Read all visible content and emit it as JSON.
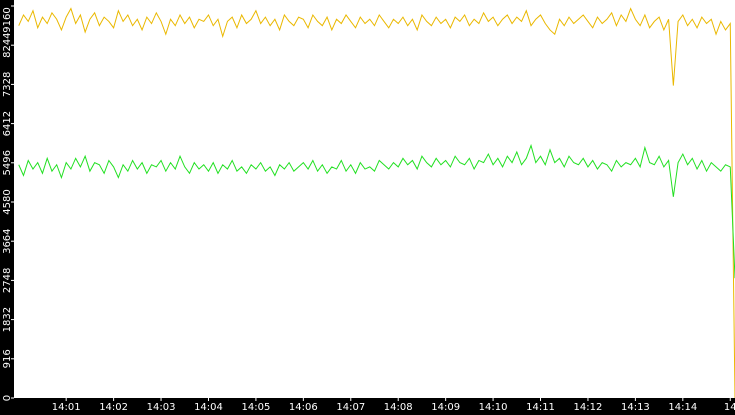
{
  "chart_data": {
    "type": "line",
    "x": [
      0,
      0.1,
      0.2,
      0.3,
      0.4,
      0.5,
      0.6,
      0.7,
      0.8,
      0.9,
      1,
      1.1,
      1.2,
      1.3,
      1.4,
      1.5,
      1.6,
      1.7,
      1.8,
      1.9,
      2,
      2.1,
      2.2,
      2.3,
      2.4,
      2.5,
      2.6,
      2.7,
      2.8,
      2.9,
      3,
      3.1,
      3.2,
      3.3,
      3.4,
      3.5,
      3.6,
      3.7,
      3.8,
      3.9,
      4,
      4.1,
      4.2,
      4.3,
      4.4,
      4.5,
      4.6,
      4.7,
      4.8,
      4.9,
      5,
      5.1,
      5.2,
      5.3,
      5.4,
      5.5,
      5.6,
      5.7,
      5.8,
      5.9,
      6,
      6.1,
      6.2,
      6.3,
      6.4,
      6.5,
      6.6,
      6.7,
      6.8,
      6.9,
      7,
      7.1,
      7.2,
      7.3,
      7.4,
      7.5,
      7.6,
      7.7,
      7.8,
      7.9,
      8,
      8.1,
      8.2,
      8.3,
      8.4,
      8.5,
      8.6,
      8.7,
      8.8,
      8.9,
      9,
      9.1,
      9.2,
      9.3,
      9.4,
      9.5,
      9.6,
      9.7,
      9.8,
      9.9,
      10,
      10.1,
      10.2,
      10.3,
      10.4,
      10.5,
      10.6,
      10.7,
      10.8,
      10.9,
      11,
      11.1,
      11.2,
      11.3,
      11.4,
      11.5,
      11.6,
      11.7,
      11.8,
      11.9,
      12,
      12.1,
      12.2,
      12.3,
      12.4,
      12.5,
      12.6,
      12.7,
      12.8,
      12.9,
      13,
      13.1,
      13.2,
      13.3,
      13.4,
      13.5,
      13.6,
      13.7,
      13.8,
      13.9,
      14,
      14.1,
      14.2,
      14.3,
      14.4,
      14.5,
      14.6,
      14.7,
      14.8,
      14.9,
      15,
      15.1
    ],
    "series": [
      {
        "color": "#eab800",
        "values": [
          8700,
          8950,
          8800,
          9050,
          8650,
          8900,
          8750,
          9000,
          8850,
          8600,
          8900,
          9100,
          8750,
          8950,
          8550,
          8850,
          9000,
          8700,
          8900,
          8800,
          8650,
          9050,
          8800,
          8950,
          8700,
          8850,
          8600,
          8900,
          8750,
          9000,
          8800,
          8500,
          8850,
          8700,
          8950,
          8750,
          8900,
          8650,
          8850,
          8800,
          8950,
          8700,
          8850,
          8450,
          8800,
          8900,
          8650,
          8950,
          8750,
          8850,
          9050,
          8750,
          8900,
          8700,
          8850,
          8600,
          8950,
          8800,
          8700,
          8900,
          8850,
          8650,
          8950,
          8800,
          8700,
          8900,
          8600,
          8850,
          8750,
          8950,
          8800,
          8650,
          8900,
          8750,
          8850,
          8700,
          8950,
          8800,
          8650,
          8850,
          8750,
          8900,
          8700,
          8850,
          8600,
          8950,
          8800,
          8700,
          8900,
          8750,
          8850,
          8650,
          8900,
          8800,
          8950,
          8700,
          8850,
          8750,
          9000,
          8800,
          8900,
          8700,
          8850,
          8950,
          8750,
          8900,
          8800,
          9050,
          8700,
          8850,
          8950,
          8750,
          8600,
          8500,
          8850,
          8700,
          8900,
          8750,
          8850,
          8950,
          8800,
          8650,
          8900,
          8750,
          8850,
          9000,
          8700,
          8950,
          8800,
          9100,
          8850,
          8700,
          8950,
          8650,
          8800,
          8900,
          8600,
          8850,
          7300,
          8800,
          8950,
          8700,
          8850,
          8650,
          8900,
          8750,
          8850,
          8500,
          8800,
          8600,
          8750,
          0
        ]
      },
      {
        "color": "#22e022",
        "values": [
          5450,
          5200,
          5550,
          5350,
          5500,
          5250,
          5600,
          5300,
          5450,
          5150,
          5500,
          5350,
          5600,
          5400,
          5650,
          5300,
          5500,
          5450,
          5250,
          5550,
          5400,
          5150,
          5450,
          5300,
          5550,
          5350,
          5500,
          5250,
          5450,
          5400,
          5550,
          5300,
          5500,
          5350,
          5650,
          5400,
          5250,
          5500,
          5350,
          5450,
          5300,
          5500,
          5250,
          5450,
          5350,
          5550,
          5300,
          5400,
          5250,
          5450,
          5350,
          5500,
          5300,
          5400,
          5200,
          5450,
          5350,
          5500,
          5300,
          5400,
          5500,
          5350,
          5550,
          5300,
          5450,
          5250,
          5400,
          5350,
          5550,
          5300,
          5450,
          5250,
          5500,
          5350,
          5400,
          5300,
          5550,
          5450,
          5350,
          5500,
          5400,
          5600,
          5450,
          5550,
          5350,
          5650,
          5500,
          5400,
          5600,
          5450,
          5550,
          5400,
          5650,
          5500,
          5450,
          5600,
          5350,
          5550,
          5500,
          5700,
          5450,
          5600,
          5400,
          5650,
          5500,
          5750,
          5450,
          5600,
          5900,
          5500,
          5650,
          5450,
          5800,
          5500,
          5600,
          5400,
          5650,
          5500,
          5450,
          5600,
          5400,
          5550,
          5350,
          5500,
          5450,
          5300,
          5550,
          5400,
          5500,
          5450,
          5600,
          5400,
          5850,
          5500,
          5450,
          5650,
          5400,
          5550,
          4700,
          5500,
          5700,
          5450,
          5600,
          5350,
          5550,
          5300,
          5500,
          5400,
          5300,
          5450,
          5400,
          2800
        ]
      }
    ],
    "xlim": [
      -0.1,
      15.1
    ],
    "xticks": [
      {
        "value": 1,
        "label": "14:01"
      },
      {
        "value": 2,
        "label": "14:02"
      },
      {
        "value": 3,
        "label": "14:03"
      },
      {
        "value": 4,
        "label": "14:04"
      },
      {
        "value": 5,
        "label": "14:05"
      },
      {
        "value": 6,
        "label": "14:06"
      },
      {
        "value": 7,
        "label": "14:07"
      },
      {
        "value": 8,
        "label": "14:08"
      },
      {
        "value": 9,
        "label": "14:09"
      },
      {
        "value": 10,
        "label": "14:10"
      },
      {
        "value": 11,
        "label": "14:11"
      },
      {
        "value": 12,
        "label": "14:12"
      },
      {
        "value": 13,
        "label": "14:13"
      },
      {
        "value": 14,
        "label": "14:14"
      },
      {
        "value": 15,
        "label": "14"
      }
    ],
    "ylim": [
      0,
      9300
    ],
    "yticks": [
      0,
      916,
      1832,
      2748,
      3664,
      4580,
      5496,
      6412,
      7328,
      8244,
      9160
    ]
  }
}
